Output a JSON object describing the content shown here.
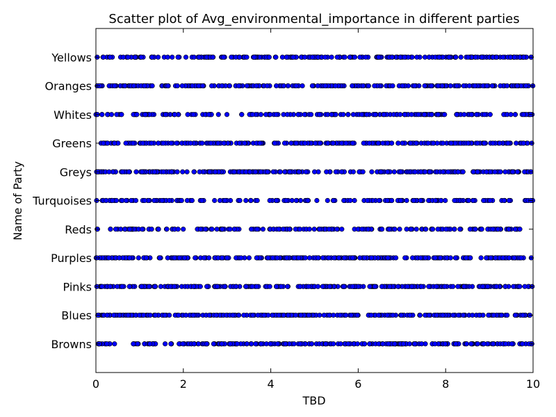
{
  "chart_data": {
    "type": "scatter",
    "title": "Scatter plot of Avg_environmental_importance in different parties",
    "xlabel": "TBD",
    "ylabel": "Name of Party",
    "xlim": [
      0,
      10
    ],
    "xticks": [
      "0",
      "2",
      "4",
      "6",
      "8",
      "10"
    ],
    "categories": [
      "Browns",
      "Blues",
      "Pinks",
      "Purples",
      "Reds",
      "Turquoises",
      "Greys",
      "Greens",
      "Whites",
      "Oranges",
      "Yellows"
    ],
    "point_color": "#0000ff",
    "grid": false,
    "series": [
      {
        "category": "Browns",
        "density": "dense",
        "x_range": [
          0,
          10
        ],
        "gaps": []
      },
      {
        "category": "Blues",
        "density": "dense",
        "x_range": [
          0,
          10
        ],
        "gaps": []
      },
      {
        "category": "Pinks",
        "density": "dense",
        "x_range": [
          0,
          10
        ],
        "gaps": []
      },
      {
        "category": "Purples",
        "density": "dense",
        "x_range": [
          0,
          10
        ],
        "gaps": []
      },
      {
        "category": "Reds",
        "density": "sparser",
        "x_range": [
          0,
          10
        ],
        "gaps": [
          [
            0.05,
            0.3
          ],
          [
            2.05,
            2.3
          ],
          [
            5.65,
            5.9
          ]
        ]
      },
      {
        "category": "Turquoises",
        "density": "sparser",
        "x_range": [
          0,
          10
        ],
        "gaps": [
          [
            1.75,
            1.85
          ],
          [
            3.7,
            3.95
          ],
          [
            9.55,
            9.75
          ]
        ]
      },
      {
        "category": "Greys",
        "density": "dense",
        "x_range": [
          0,
          10
        ],
        "gaps": [
          [
            6.15,
            6.3
          ]
        ]
      },
      {
        "category": "Greens",
        "density": "dense",
        "x_range": [
          0,
          10
        ],
        "gaps": []
      },
      {
        "category": "Whites",
        "density": "sparser",
        "x_range": [
          0,
          10
        ],
        "gaps": [
          [
            0.7,
            0.85
          ],
          [
            3.1,
            3.3
          ],
          [
            9.05,
            9.2
          ]
        ]
      },
      {
        "category": "Oranges",
        "density": "dense",
        "x_range": [
          0,
          10
        ],
        "gaps": [
          [
            1.35,
            1.5
          ],
          [
            4.4,
            4.5
          ]
        ]
      },
      {
        "category": "Yellows",
        "density": "dense",
        "x_range": [
          0,
          10
        ],
        "gaps": [
          [
            1.1,
            1.25
          ],
          [
            2.7,
            2.8
          ],
          [
            6.25,
            6.4
          ],
          [
            8.35,
            8.45
          ]
        ]
      }
    ]
  }
}
